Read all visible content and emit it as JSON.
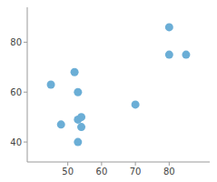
{
  "chart_data": {
    "type": "scatter",
    "x": [
      45,
      48,
      52,
      53,
      53,
      54,
      54,
      53,
      70,
      80,
      80,
      85
    ],
    "y": [
      63,
      47,
      68,
      49,
      60,
      50,
      46,
      40,
      55,
      86,
      75,
      75
    ],
    "color": "#6baed6",
    "xlim": [
      38,
      92
    ],
    "ylim": [
      32,
      94
    ],
    "xticks": [
      50,
      60,
      70,
      80
    ],
    "yticks": [
      40,
      60,
      80
    ],
    "grid": false
  }
}
